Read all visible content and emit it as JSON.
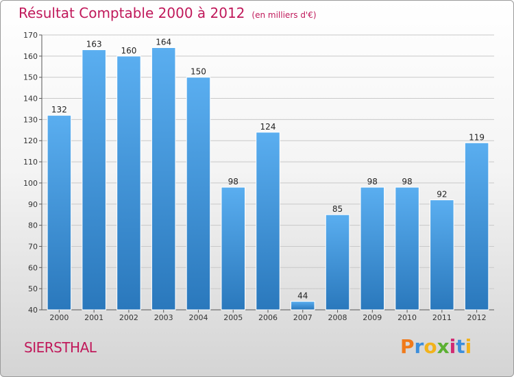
{
  "chart_data": {
    "type": "bar",
    "title": "Résultat Comptable 2000 à 2012",
    "subtitle": "(en milliers d'€)",
    "categories": [
      "2000",
      "2001",
      "2002",
      "2003",
      "2004",
      "2005",
      "2006",
      "2007",
      "2008",
      "2009",
      "2010",
      "2011",
      "2012"
    ],
    "values": [
      132,
      163,
      160,
      164,
      150,
      98,
      124,
      44,
      85,
      98,
      98,
      92,
      119
    ],
    "ylim": [
      40,
      170
    ],
    "yticks": [
      40,
      50,
      60,
      70,
      80,
      90,
      100,
      110,
      120,
      130,
      140,
      150,
      160,
      170
    ],
    "grid": true,
    "bar_color_top": "#5aaef0",
    "bar_color_bottom": "#2a78bc"
  },
  "footer": {
    "place": "SIERSTHAL",
    "logo_letters": [
      "P",
      "r",
      "o",
      "x",
      "i",
      "t",
      "i"
    ],
    "logo_colors": [
      "#f07a1a",
      "#3c8edc",
      "#f2b21b",
      "#5bb032",
      "#d12a72",
      "#3c8edc",
      "#f2b21b"
    ]
  },
  "colors": {
    "title": "#c0185a",
    "grid": "#c8c8c8",
    "axis": "#555555"
  }
}
